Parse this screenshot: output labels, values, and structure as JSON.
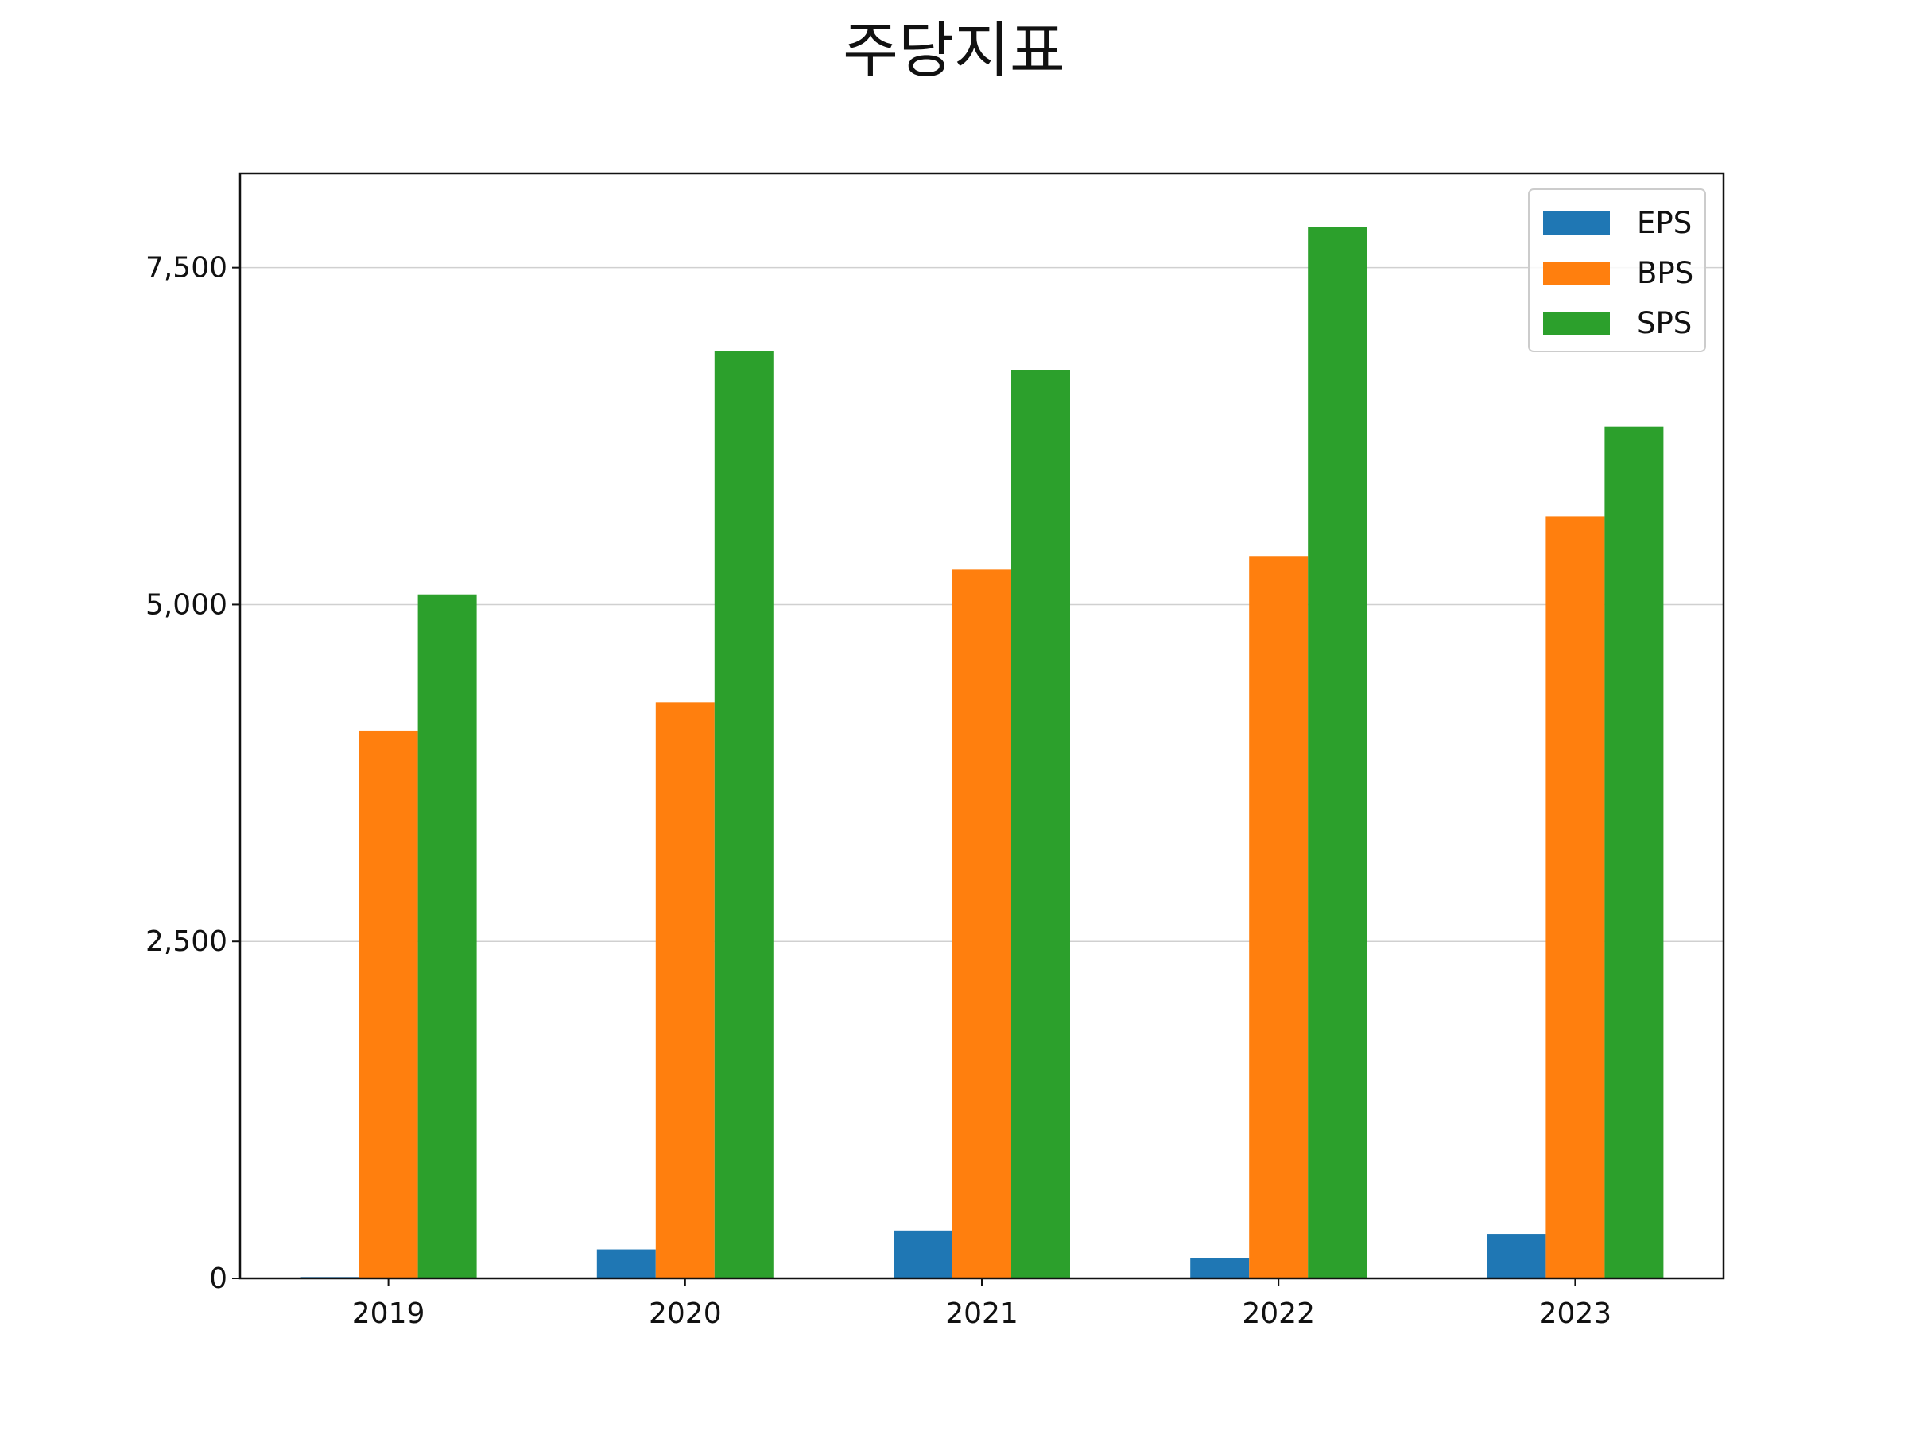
{
  "chart_data": {
    "type": "bar",
    "title": "주당지표",
    "xlabel": "",
    "ylabel": "",
    "categories": [
      "2019",
      "2020",
      "2021",
      "2022",
      "2023"
    ],
    "series": [
      {
        "name": "EPS",
        "color": "#1f77b4",
        "values": [
          10,
          215,
          355,
          150,
          330
        ]
      },
      {
        "name": "BPS",
        "color": "#ff7f0e",
        "values": [
          4065,
          4275,
          5260,
          5355,
          5655
        ]
      },
      {
        "name": "SPS",
        "color": "#2ca02c",
        "values": [
          5075,
          6880,
          6740,
          7800,
          6320
        ]
      }
    ],
    "ylim": [
      0,
      8200
    ],
    "yticks": [
      0,
      2500,
      5000,
      7500
    ],
    "ytick_labels": [
      "0",
      "2,500",
      "5,000",
      "7,500"
    ],
    "grid": "horizontal",
    "legend_position": "upper right"
  }
}
